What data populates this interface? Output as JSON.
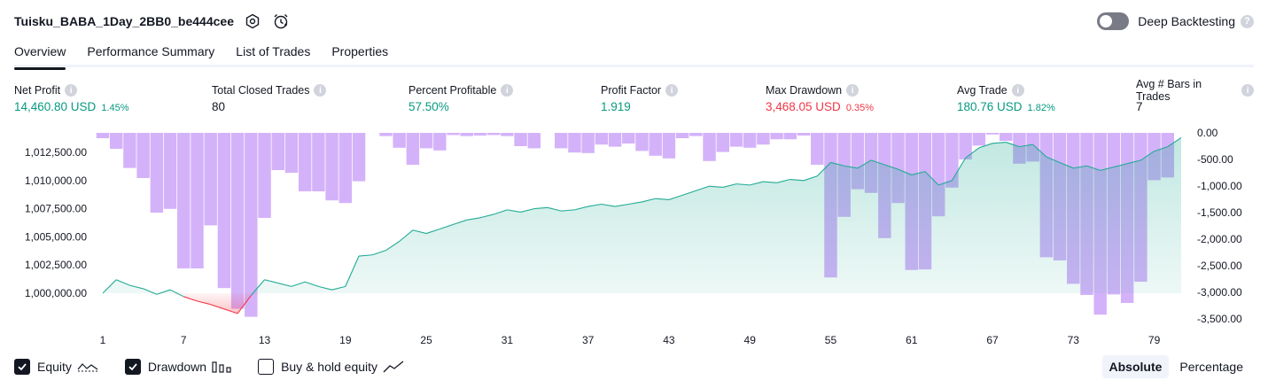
{
  "header": {
    "strategy_name": "Tuisku_BABA_1Day_2BB0_be444cee",
    "deep_backtesting_label": "Deep Backtesting",
    "help_glyph": "?"
  },
  "tabs": [
    {
      "label": "Overview",
      "active": true
    },
    {
      "label": "Performance Summary",
      "active": false
    },
    {
      "label": "List of Trades",
      "active": false
    },
    {
      "label": "Properties",
      "active": false
    }
  ],
  "metrics": [
    {
      "label": "Net Profit",
      "value": "14,460.80 USD",
      "pct": "1.45%",
      "color": "green"
    },
    {
      "label": "Total Closed Trades",
      "value": "80",
      "pct": "",
      "color": "dark"
    },
    {
      "label": "Percent Profitable",
      "value": "57.50%",
      "pct": "",
      "color": "green"
    },
    {
      "label": "Profit Factor",
      "value": "1.919",
      "pct": "",
      "color": "green"
    },
    {
      "label": "Max Drawdown",
      "value": "3,468.05 USD",
      "pct": "0.35%",
      "color": "red"
    },
    {
      "label": "Avg Trade",
      "value": "180.76 USD",
      "pct": "1.82%",
      "color": "green"
    },
    {
      "label": "Avg # Bars in Trades",
      "value": "7",
      "pct": "",
      "color": "dark"
    }
  ],
  "chart_data": {
    "type": "line",
    "x_ticks": [
      1,
      7,
      13,
      19,
      25,
      31,
      37,
      43,
      49,
      55,
      61,
      67,
      73,
      79
    ],
    "left_axis_ticks": [
      "1,012,500.00",
      "1,010,000.00",
      "1,007,500.00",
      "1,005,000.00",
      "1,002,500.00",
      "1,000,000.00"
    ],
    "left_axis_values": [
      1012500,
      1010000,
      1007500,
      1005000,
      1002500,
      1000000
    ],
    "right_axis_ticks": [
      "0.00",
      "-500.00",
      "-1,000.00",
      "-1,500.00",
      "-2,000.00",
      "-2,500.00",
      "-3,000.00",
      "-3,500.00"
    ],
    "right_axis_values": [
      0,
      -500,
      -1000,
      -1500,
      -2000,
      -2500,
      -3000,
      -3500
    ],
    "equity_ylim": [
      997800,
      1014500
    ],
    "drawdown_ylim": [
      -3850,
      0
    ],
    "baseline": 1000000,
    "series": [
      {
        "name": "Equity",
        "x": [
          1,
          2,
          3,
          4,
          5,
          6,
          7,
          8,
          9,
          10,
          11,
          12,
          13,
          14,
          15,
          16,
          17,
          18,
          19,
          20,
          21,
          22,
          23,
          24,
          25,
          26,
          27,
          28,
          29,
          30,
          31,
          32,
          33,
          34,
          35,
          36,
          37,
          38,
          39,
          40,
          41,
          42,
          43,
          44,
          45,
          46,
          47,
          48,
          49,
          50,
          51,
          52,
          53,
          54,
          55,
          56,
          57,
          58,
          59,
          60,
          61,
          62,
          63,
          64,
          65,
          66,
          67,
          68,
          69,
          70,
          71,
          72,
          73,
          74,
          75,
          76,
          77,
          78,
          79,
          80,
          81
        ],
        "values": [
          1000000,
          1001200,
          1000700,
          1000400,
          999900,
          1000300,
          999700,
          999300,
          999000,
          998600,
          998200,
          999800,
          1001200,
          1000900,
          1000600,
          1001000,
          1000600,
          1000300,
          1000600,
          1003300,
          1003400,
          1003800,
          1004600,
          1005600,
          1005300,
          1005700,
          1006100,
          1006500,
          1006700,
          1007000,
          1007400,
          1007200,
          1007500,
          1007600,
          1007300,
          1007400,
          1007700,
          1007900,
          1007700,
          1007900,
          1008100,
          1008400,
          1008300,
          1008700,
          1009100,
          1009500,
          1009400,
          1009700,
          1009600,
          1009900,
          1009800,
          1010100,
          1010000,
          1010400,
          1011600,
          1011300,
          1011100,
          1011800,
          1011400,
          1011000,
          1010500,
          1010800,
          1009600,
          1010000,
          1012000,
          1012900,
          1013300,
          1013400,
          1013000,
          1013200,
          1012100,
          1011600,
          1011100,
          1011300,
          1010900,
          1011200,
          1011500,
          1011800,
          1012600,
          1013000,
          1013800
        ],
        "color": "#22ab94"
      },
      {
        "name": "Drawdown",
        "x": [
          1,
          2,
          3,
          4,
          5,
          6,
          7,
          8,
          9,
          10,
          11,
          12,
          13,
          14,
          15,
          16,
          17,
          18,
          19,
          20,
          21,
          22,
          23,
          24,
          25,
          26,
          27,
          28,
          29,
          30,
          31,
          32,
          33,
          34,
          35,
          36,
          37,
          38,
          39,
          40,
          41,
          42,
          43,
          44,
          45,
          46,
          47,
          48,
          49,
          50,
          51,
          52,
          53,
          54,
          55,
          56,
          57,
          58,
          59,
          60,
          61,
          62,
          63,
          64,
          65,
          66,
          67,
          68,
          69,
          70,
          71,
          72,
          73,
          74,
          75,
          76,
          77,
          78,
          79,
          80,
          81
        ],
        "values": [
          -100,
          -300,
          -660,
          -850,
          -1500,
          -1430,
          -2550,
          -2550,
          -1740,
          -2920,
          -3310,
          -3460,
          -1600,
          -700,
          -750,
          -1100,
          -1100,
          -1270,
          -1320,
          -910,
          0,
          -60,
          -280,
          -600,
          -290,
          -330,
          -40,
          -60,
          -50,
          -40,
          -60,
          -250,
          -290,
          0,
          -290,
          -370,
          -380,
          -220,
          -260,
          -200,
          -340,
          -430,
          -480,
          -100,
          -60,
          -530,
          -360,
          -260,
          -280,
          -220,
          -120,
          -120,
          -50,
          -600,
          -2720,
          -1580,
          -1060,
          -1130,
          -1980,
          -1320,
          -2580,
          -2570,
          -1570,
          -1030,
          -500,
          -240,
          -30,
          -150,
          -580,
          -540,
          -2340,
          -2400,
          -2840,
          -3050,
          -3420,
          -3040,
          -3200,
          -2800,
          -890,
          -840,
          0
        ],
        "color": "#c89cf9"
      }
    ]
  },
  "legend": {
    "equity_label": "Equity",
    "drawdown_label": "Drawdown",
    "buyhold_label": "Buy & hold equity"
  },
  "scale": {
    "absolute_label": "Absolute",
    "percentage_label": "Percentage"
  }
}
